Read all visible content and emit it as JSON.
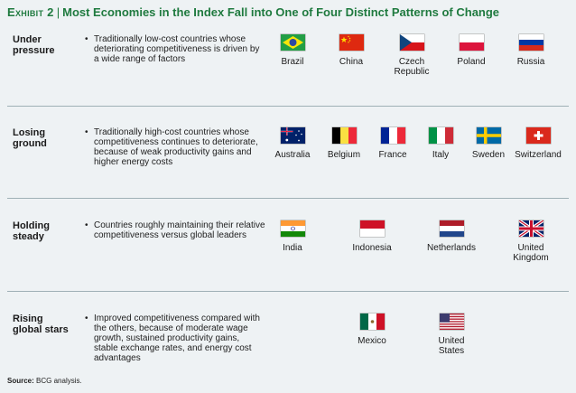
{
  "title": {
    "exhibit": "Exhibit 2",
    "separator": "|",
    "text": "Most Economies in the Index Fall into One of Four Distinct Patterns of Change"
  },
  "rows": [
    {
      "label": "Under\npressure",
      "bullet": "•",
      "description": "Traditionally low-cost countries whose deteriorating competitiveness is driven by a wide range of factors",
      "countries": [
        {
          "name": "Brazil",
          "flag": "brazil-flag-icon"
        },
        {
          "name": "China",
          "flag": "china-flag-icon"
        },
        {
          "name": "Czech\nRepublic",
          "flag": "czech-flag-icon"
        },
        {
          "name": "Poland",
          "flag": "poland-flag-icon"
        },
        {
          "name": "Russia",
          "flag": "russia-flag-icon"
        }
      ]
    },
    {
      "label": "Losing\nground",
      "bullet": "•",
      "description": "Traditionally high-cost countries whose competitiveness continues to deteriorate, because of weak productivity gains and higher energy costs",
      "countries": [
        {
          "name": "Australia",
          "flag": "australia-flag-icon"
        },
        {
          "name": "Belgium",
          "flag": "belgium-flag-icon"
        },
        {
          "name": "France",
          "flag": "france-flag-icon"
        },
        {
          "name": "Italy",
          "flag": "italy-flag-icon"
        },
        {
          "name": "Sweden",
          "flag": "sweden-flag-icon"
        },
        {
          "name": "Switzerland",
          "flag": "switzerland-flag-icon"
        }
      ]
    },
    {
      "label": "Holding\nsteady",
      "bullet": "•",
      "description": "Countries roughly maintaining their relative competitiveness versus global leaders",
      "countries": [
        {
          "name": "India",
          "flag": "india-flag-icon"
        },
        {
          "name": "Indonesia",
          "flag": "indonesia-flag-icon"
        },
        {
          "name": "Netherlands",
          "flag": "netherlands-flag-icon"
        },
        {
          "name": "United\nKingdom",
          "flag": "uk-flag-icon"
        }
      ]
    },
    {
      "label": "Rising\nglobal stars",
      "bullet": "•",
      "description": "Improved competitiveness compared with the others, because of moderate wage growth, sustained productivity gains, stable exchange rates, and energy cost advantages",
      "countries": [
        {
          "name": "Mexico",
          "flag": "mexico-flag-icon"
        },
        {
          "name": "United\nStates",
          "flag": "usa-flag-icon"
        }
      ]
    }
  ],
  "source": {
    "label": "Source:",
    "text": "BCG analysis."
  },
  "colors": {
    "accent": "#1f7a3f",
    "background": "#eef2f4",
    "divider": "#9fb0b6"
  }
}
